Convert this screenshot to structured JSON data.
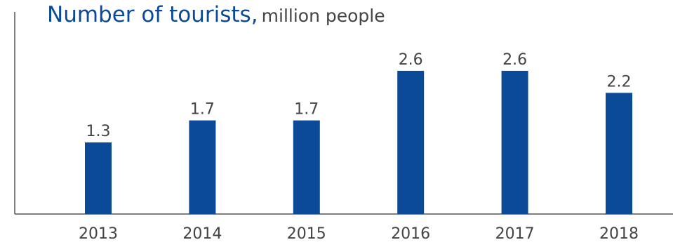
{
  "chart_data": {
    "type": "bar",
    "title": "Number of tourists,",
    "unit": "million people",
    "categories": [
      "2013",
      "2014",
      "2015",
      "2016",
      "2017",
      "2018"
    ],
    "values": [
      1.3,
      1.7,
      1.7,
      2.6,
      2.6,
      2.2
    ],
    "value_labels": [
      "1.3",
      "1.7",
      "1.7",
      "2.6",
      "2.6",
      "2.2"
    ],
    "xlabel": "",
    "ylabel": "",
    "ylim": [
      0,
      2.6
    ],
    "grid": false,
    "legend": "none",
    "colors": {
      "bar": "#0a4a96",
      "title": "#0a4a96",
      "text": "#444444",
      "axis": "#555555"
    }
  }
}
